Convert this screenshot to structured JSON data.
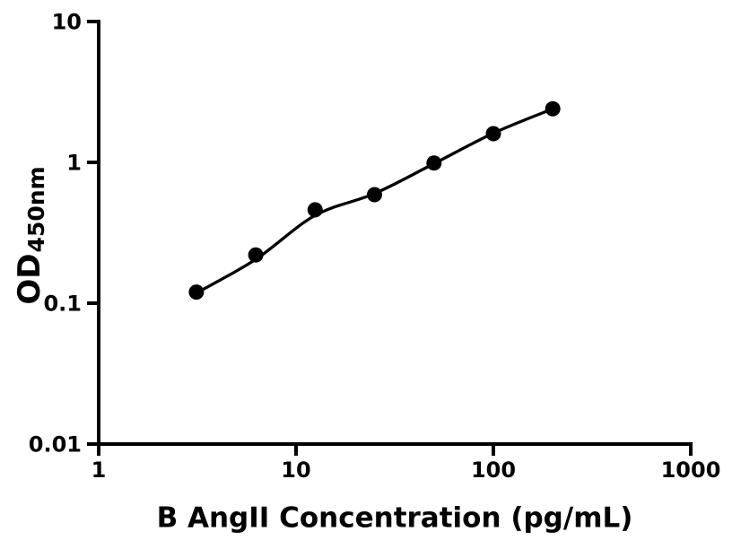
{
  "chart_data": {
    "type": "scatter",
    "xlabel": "B AngII Concentration (pg/mL)",
    "ylabel": {
      "main": "OD",
      "sub": "450nm"
    },
    "xscale": "log",
    "yscale": "log",
    "xlim": [
      1,
      1000
    ],
    "ylim": [
      0.01,
      10
    ],
    "xticks": [
      1,
      10,
      100,
      1000
    ],
    "xtick_labels": [
      "1",
      "10",
      "100",
      "1000"
    ],
    "yticks": [
      10,
      1,
      0.1,
      0.01
    ],
    "ytick_labels": [
      "10",
      "1",
      "0.1",
      "0.01"
    ],
    "grid": false,
    "legend": false,
    "x": [
      3.125,
      6.25,
      12.5,
      25,
      50,
      100,
      200
    ],
    "y": [
      0.12,
      0.22,
      0.46,
      0.59,
      0.99,
      1.6,
      2.4
    ],
    "fit_y": [
      0.118,
      0.205,
      0.42,
      0.6,
      0.98,
      1.61,
      2.4
    ],
    "colors": {
      "axis": "#000000",
      "marker": "#000000",
      "line": "#000000",
      "background": "#ffffff"
    }
  }
}
